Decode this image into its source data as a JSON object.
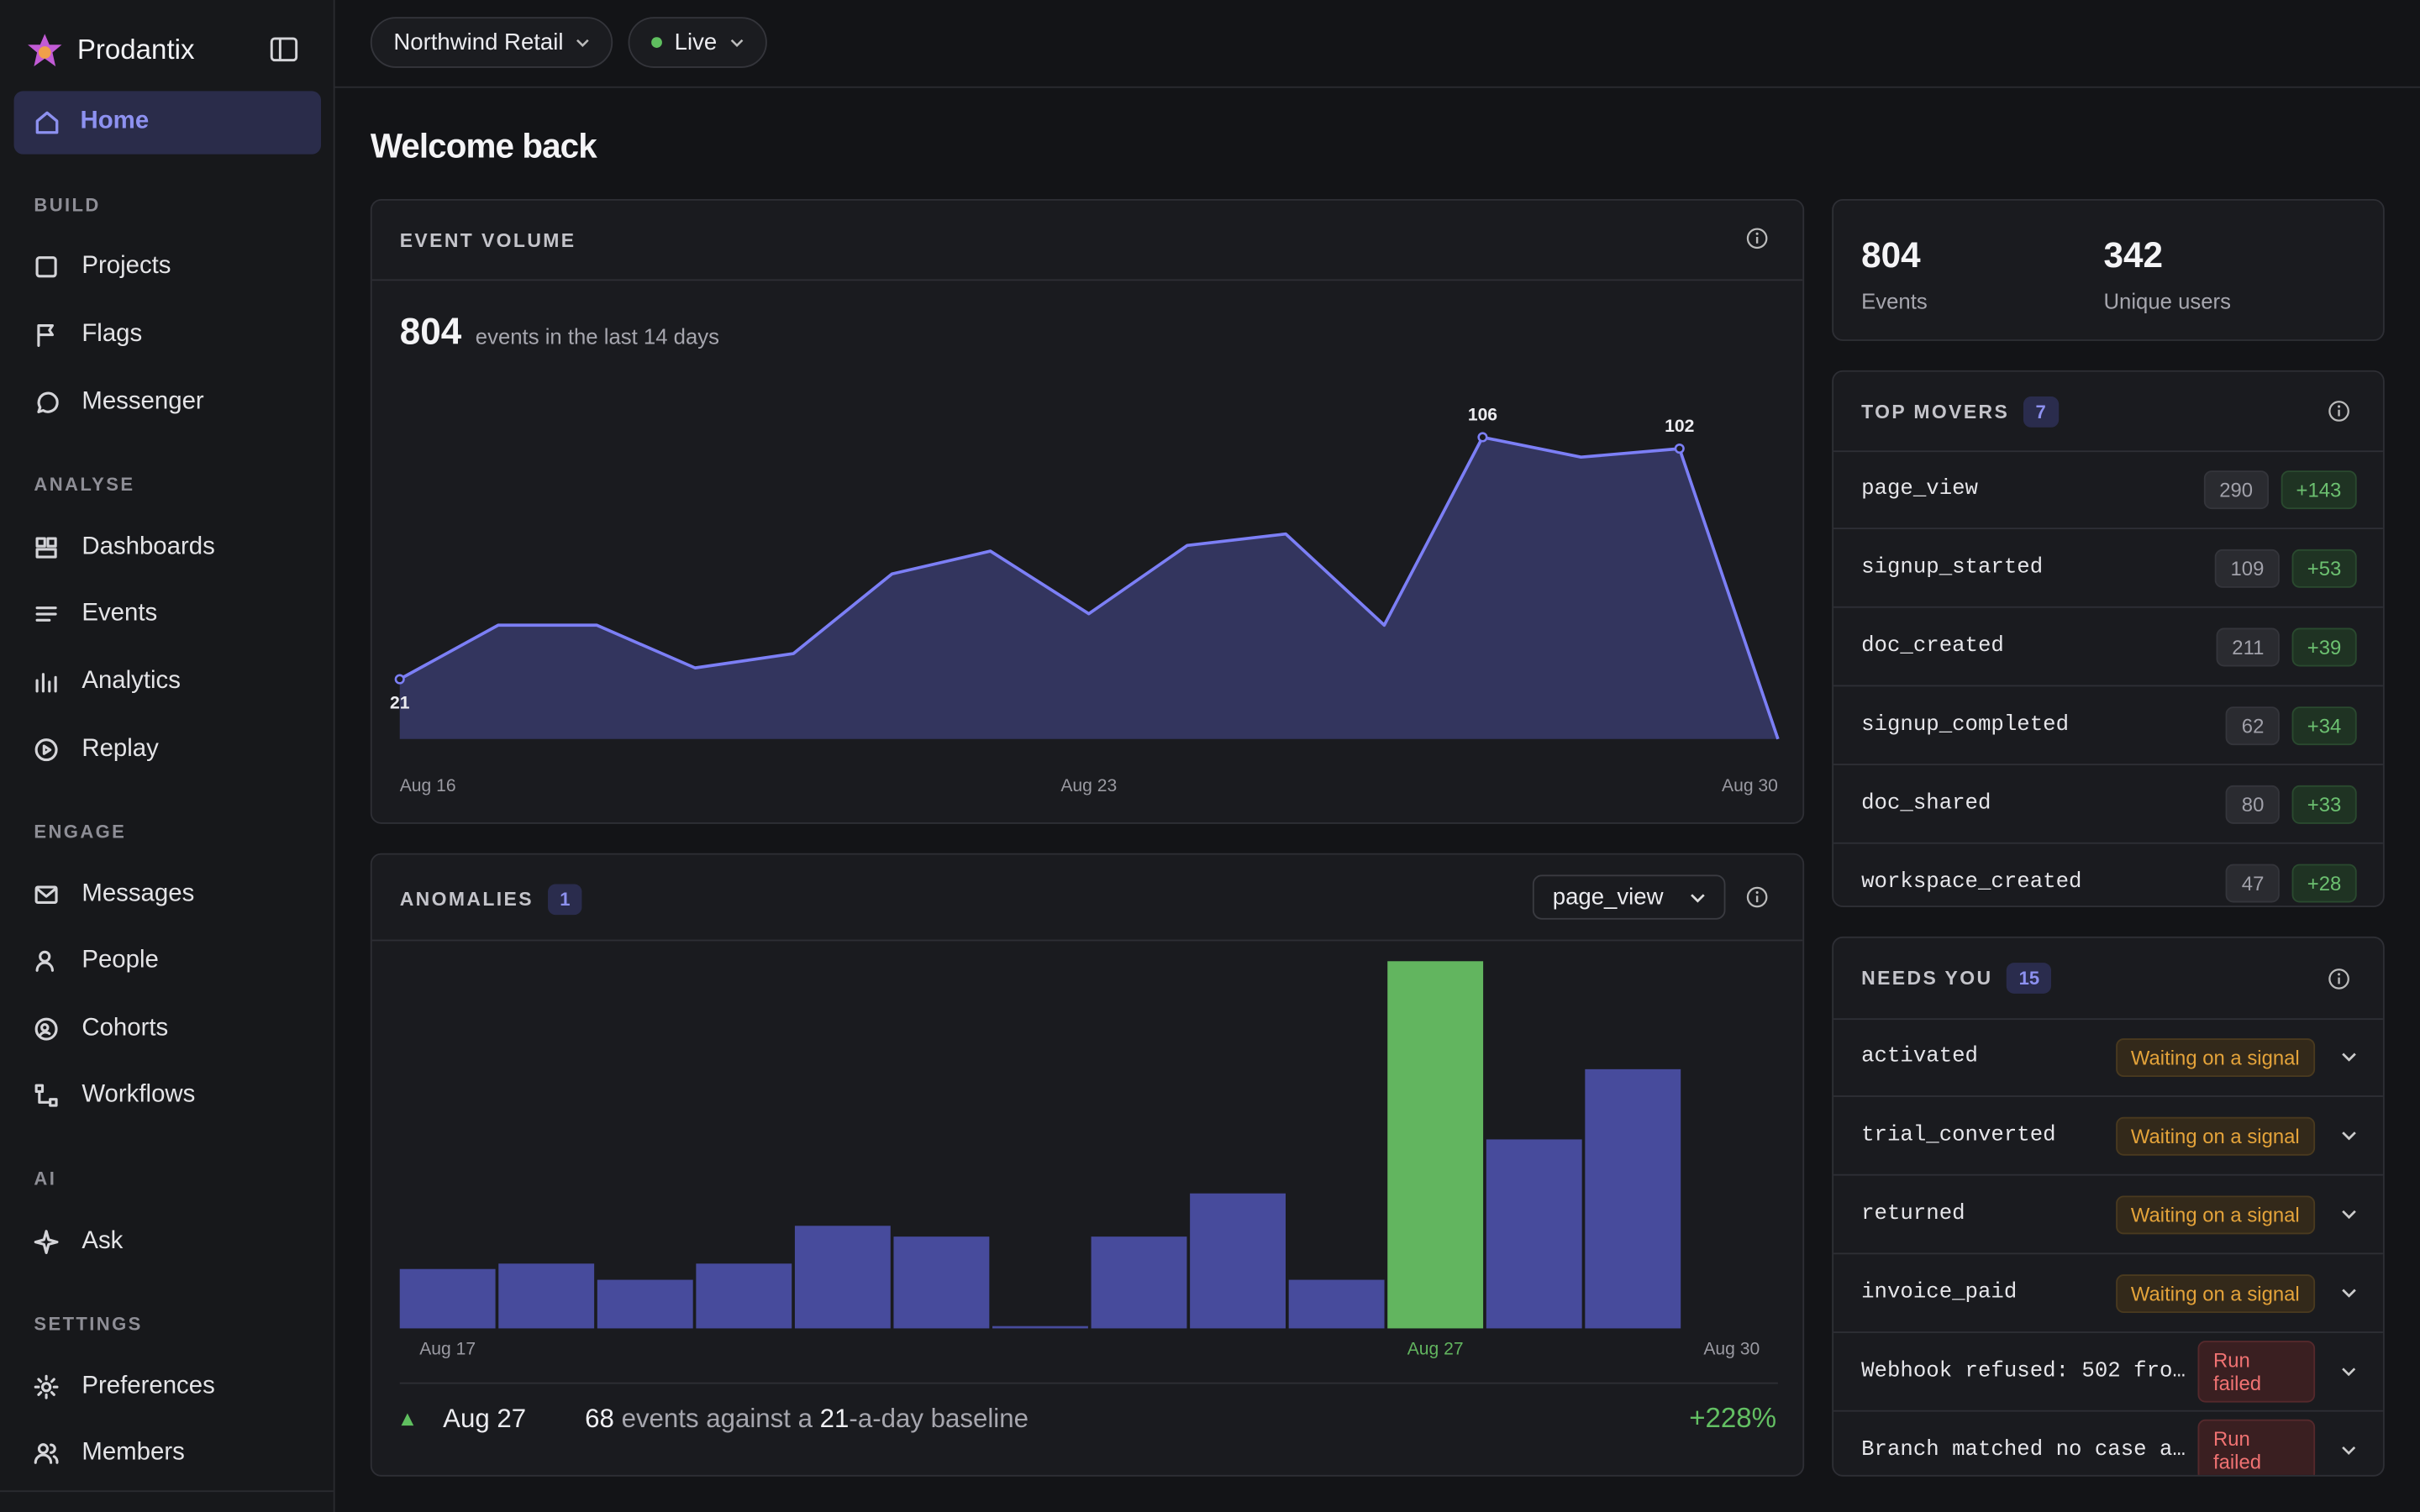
{
  "sidebar": {
    "brand": "Prodantix",
    "home": "Home",
    "sections": [
      {
        "title": "BUILD",
        "items": [
          "Projects",
          "Flags",
          "Messenger"
        ]
      },
      {
        "title": "ANALYSE",
        "items": [
          "Dashboards",
          "Events",
          "Analytics",
          "Replay"
        ]
      },
      {
        "title": "ENGAGE",
        "items": [
          "Messages",
          "People",
          "Cohorts",
          "Workflows"
        ]
      },
      {
        "title": "AI",
        "items": [
          "Ask"
        ]
      },
      {
        "title": "SETTINGS",
        "items": [
          "Preferences",
          "Members"
        ]
      }
    ]
  },
  "topbar": {
    "workspace": "Northwind Retail",
    "environment": "Live"
  },
  "page_title": "Welcome back",
  "summary": {
    "total": 804,
    "caption": "events in the last 14 days"
  },
  "chart_data": [
    {
      "type": "line",
      "title": "EVENT VOLUME",
      "categories": [
        "Aug 16",
        null,
        null,
        null,
        null,
        null,
        null,
        "Aug 23",
        null,
        null,
        null,
        null,
        null,
        null,
        "Aug 30"
      ],
      "values": [
        21,
        40,
        40,
        25,
        30,
        58,
        66,
        44,
        68,
        72,
        40,
        106,
        99,
        102,
        0
      ],
      "ylim": [
        0,
        110
      ],
      "color": "#7c7ff6",
      "fill": "#33355e",
      "labeled_points": [
        0,
        11,
        13
      ]
    },
    {
      "type": "bar",
      "title": "ANOMALIES",
      "categories": [
        "Aug 17",
        null,
        null,
        null,
        null,
        null,
        null,
        null,
        null,
        null,
        "Aug 27",
        null,
        null,
        "Aug 30"
      ],
      "values": [
        11,
        12,
        9,
        12,
        19,
        17,
        0,
        17,
        25,
        9,
        68,
        35,
        48,
        null
      ],
      "ylim": [
        0,
        68
      ],
      "color": "#474b9c",
      "highlight_color": "#62b55f",
      "highlight_index": 10
    }
  ],
  "anomalies": {
    "count": 1,
    "metric": "page_view",
    "finding": {
      "date": "Aug 27",
      "value": 68,
      "text": "events against a",
      "baseline": 21,
      "baseline_suffix": "-a-day baseline",
      "change": "+228%"
    }
  },
  "stats": [
    {
      "value": 804,
      "label": "Events"
    },
    {
      "value": 342,
      "label": "Unique users"
    }
  ],
  "top_movers": {
    "title": "TOP MOVERS",
    "count": 7,
    "rows": [
      {
        "name": "page_view",
        "count": 290,
        "change": "+143"
      },
      {
        "name": "signup_started",
        "count": 109,
        "change": "+53"
      },
      {
        "name": "doc_created",
        "count": 211,
        "change": "+39"
      },
      {
        "name": "signup_completed",
        "count": 62,
        "change": "+34"
      },
      {
        "name": "doc_shared",
        "count": 80,
        "change": "+33"
      },
      {
        "name": "workspace_created",
        "count": 47,
        "change": "+28"
      }
    ]
  },
  "needs_you": {
    "title": "NEEDS YOU",
    "count": 15,
    "rows": [
      {
        "name": "activated",
        "status": "Waiting on a signal",
        "tone": "warning"
      },
      {
        "name": "trial_converted",
        "status": "Waiting on a signal",
        "tone": "warning"
      },
      {
        "name": "returned",
        "status": "Waiting on a signal",
        "tone": "warning"
      },
      {
        "name": "invoice_paid",
        "status": "Waiting on a signal",
        "tone": "warning"
      },
      {
        "name": "Webhook refused: 502 fro…",
        "status": "Run failed",
        "tone": "danger"
      },
      {
        "name": "Branch matched no case a…",
        "status": "Run failed",
        "tone": "danger"
      }
    ]
  }
}
